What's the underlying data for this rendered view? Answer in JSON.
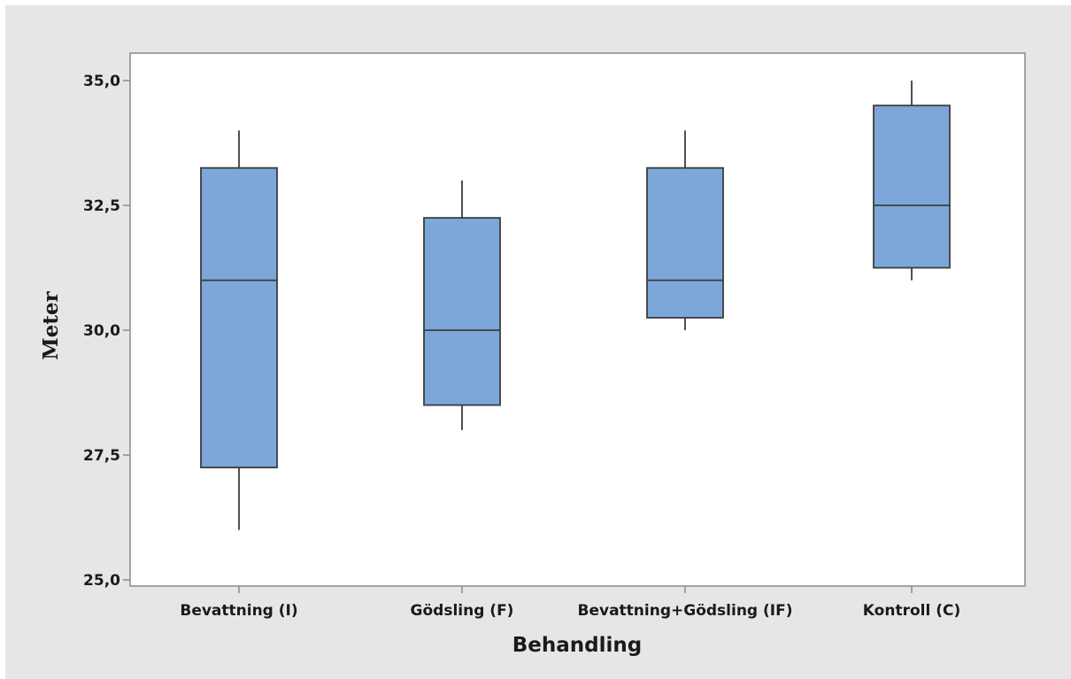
{
  "chart_data": {
    "type": "boxplot",
    "xlabel": "Behandling",
    "ylabel": "Meter",
    "ylim": [
      25,
      35
    ],
    "yticks": [
      25.0,
      27.5,
      30.0,
      32.5,
      35.0
    ],
    "ytick_labels": [
      "25,0",
      "27,5",
      "30,0",
      "32,5",
      "35,0"
    ],
    "categories": [
      "Bevattning (I)",
      "Gödsling (F)",
      "Bevattning+Gödsling (IF)",
      "Kontroll (C)"
    ],
    "boxes": [
      {
        "whisker_low": 26.0,
        "q1": 27.25,
        "median": 31.0,
        "q3": 33.25,
        "whisker_high": 34.0
      },
      {
        "whisker_low": 28.0,
        "q1": 28.5,
        "median": 30.0,
        "q3": 32.25,
        "whisker_high": 33.0
      },
      {
        "whisker_low": 30.0,
        "q1": 30.25,
        "median": 31.0,
        "q3": 33.25,
        "whisker_high": 34.0
      },
      {
        "whisker_low": 31.0,
        "q1": 31.25,
        "median": 32.5,
        "q3": 34.5,
        "whisker_high": 35.0
      }
    ],
    "grid": false,
    "legend": "none",
    "colors": {
      "box_fill": "#7da7d9",
      "box_stroke": "#3c3c3c",
      "frame_background": "#e6e6e6",
      "plot_background": "#ffffff",
      "axis": "#8a8a8a"
    }
  }
}
